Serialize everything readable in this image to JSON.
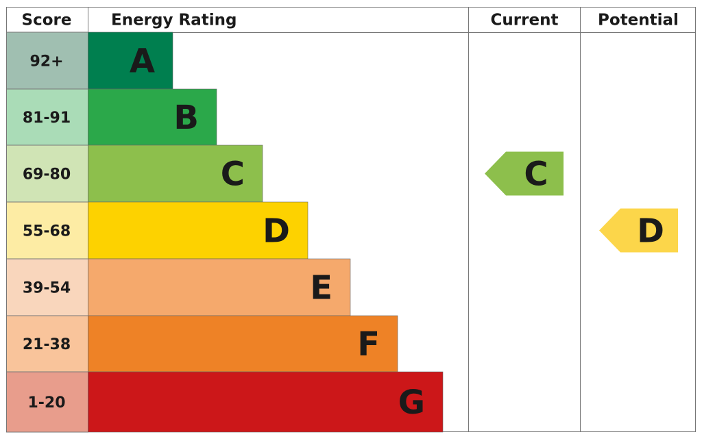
{
  "header": {
    "score": "Score",
    "energy_rating": "Energy Rating",
    "current": "Current",
    "potential": "Potential"
  },
  "rows": [
    {
      "score": "92+",
      "rating": "A",
      "color": "#007f4f",
      "score_color": "#a0bfb1"
    },
    {
      "score": "81-91",
      "rating": "B",
      "color": "#2ba84a",
      "score_color": "#aadcb7"
    },
    {
      "score": "69-80",
      "rating": "C",
      "color": "#8dbf4c",
      "score_color": "#d0e4b5"
    },
    {
      "score": "55-68",
      "rating": "D",
      "color": "#fdd200",
      "score_color": "#fdeca4"
    },
    {
      "score": "39-54",
      "rating": "E",
      "color": "#f5a96c",
      "score_color": "#f9d6bc"
    },
    {
      "score": "21-38",
      "rating": "F",
      "color": "#ee8226",
      "score_color": "#f9c49b"
    },
    {
      "score": "1-20",
      "rating": "G",
      "color": "#cc1719",
      "score_color": "#e89d8c"
    }
  ],
  "current": {
    "rating": "C",
    "color": "#8dbf4c"
  },
  "potential": {
    "rating": "D",
    "color": "#fcd64a"
  }
}
